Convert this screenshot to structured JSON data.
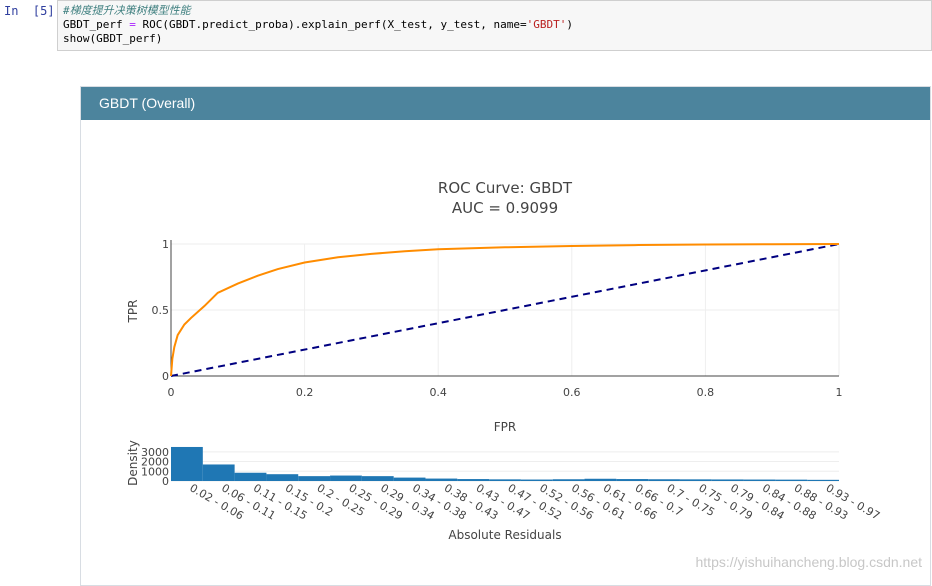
{
  "notebook": {
    "prompt": "In  [5]:",
    "code": {
      "comment": "#梯度提升决策树模型性能",
      "line2_pre": "GBDT_perf ",
      "line2_op": "=",
      "line2_mid": " ROC(GBDT.predict_proba).explain_perf(X_test, y_test, name=",
      "line2_str": "'GBDT'",
      "line2_post": ")",
      "line3": "show(GBDT_perf)"
    }
  },
  "panel": {
    "title": "GBDT (Overall)"
  },
  "roc_chart": {
    "title_line1": "ROC Curve: GBDT",
    "title_line2": "AUC = 0.9099",
    "xlabel": "FPR",
    "ylabel": "TPR",
    "xticks": [
      "0",
      "0.2",
      "0.4",
      "0.6",
      "0.8",
      "1"
    ],
    "yticks": [
      "0",
      "0.5",
      "1"
    ],
    "colors": {
      "curve": "#ff8c00",
      "diagonal": "#000080"
    }
  },
  "hist_chart": {
    "xlabel": "Absolute Residuals",
    "ylabel": "Density",
    "yticks": [
      "0",
      "1000",
      "2000",
      "3000"
    ],
    "bins": [
      "0.02 - 0.06",
      "0.06 - 0.11",
      "0.11 - 0.15",
      "0.15 - 0.2",
      "0.2 - 0.25",
      "0.25 - 0.29",
      "0.29 - 0.34",
      "0.34 - 0.38",
      "0.38 - 0.43",
      "0.43 - 0.47",
      "0.47 - 0.52",
      "0.52 - 0.56",
      "0.56 - 0.61",
      "0.61 - 0.66",
      "0.66 - 0.7",
      "0.7 - 0.75",
      "0.75 - 0.79",
      "0.79 - 0.84",
      "0.84 - 0.88",
      "0.88 - 0.93",
      "0.93 - 0.97"
    ],
    "color": "#1f77b4"
  },
  "chart_data": [
    {
      "type": "line",
      "title": "ROC Curve: GBDT",
      "subtitle": "AUC = 0.9099",
      "xlabel": "FPR",
      "ylabel": "TPR",
      "xlim": [
        0,
        1
      ],
      "ylim": [
        0,
        1
      ],
      "grid": true,
      "series": [
        {
          "x": [
            0,
            0.002,
            0.005,
            0.01,
            0.02,
            0.03,
            0.05,
            0.07,
            0.1,
            0.13,
            0.16,
            0.2,
            0.25,
            0.3,
            0.35,
            0.4,
            0.5,
            0.6,
            0.7,
            0.8,
            0.9,
            1.0
          ],
          "y": [
            0,
            0.13,
            0.22,
            0.31,
            0.39,
            0.44,
            0.53,
            0.63,
            0.7,
            0.76,
            0.81,
            0.86,
            0.9,
            0.925,
            0.945,
            0.96,
            0.975,
            0.985,
            0.992,
            0.996,
            0.998,
            1.0
          ]
        },
        {
          "x": [
            0,
            1
          ],
          "y": [
            0,
            1
          ]
        }
      ]
    },
    {
      "type": "bar",
      "xlabel": "Absolute Residuals",
      "ylabel": "Density",
      "ylim": [
        0,
        3600
      ],
      "categories": [
        "0.02 - 0.06",
        "0.06 - 0.11",
        "0.11 - 0.15",
        "0.15 - 0.2",
        "0.2 - 0.25",
        "0.25 - 0.29",
        "0.29 - 0.34",
        "0.34 - 0.38",
        "0.38 - 0.43",
        "0.43 - 0.47",
        "0.47 - 0.52",
        "0.52 - 0.56",
        "0.56 - 0.61",
        "0.61 - 0.66",
        "0.66 - 0.7",
        "0.7 - 0.75",
        "0.75 - 0.79",
        "0.79 - 0.84",
        "0.84 - 0.88",
        "0.88 - 0.93",
        "0.93 - 0.97"
      ],
      "values": [
        3500,
        1700,
        850,
        700,
        500,
        560,
        500,
        350,
        250,
        200,
        170,
        150,
        180,
        230,
        200,
        180,
        170,
        160,
        150,
        140,
        120
      ]
    }
  ],
  "watermark": "https://yishuihancheng.blog.csdn.net"
}
